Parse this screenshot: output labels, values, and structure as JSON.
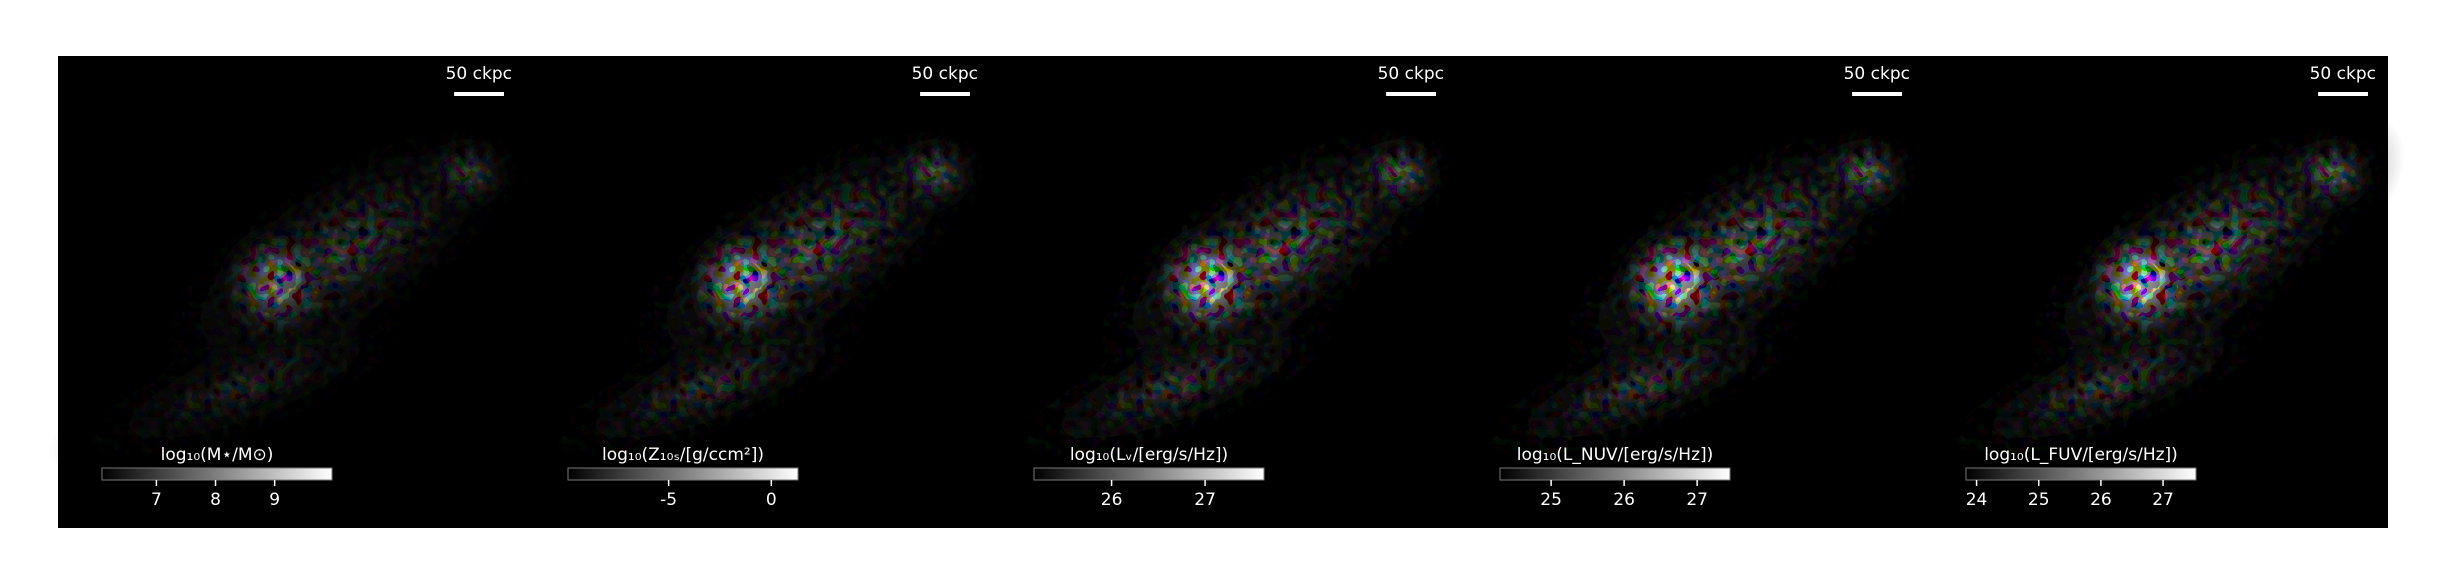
{
  "figure": {
    "type": "image",
    "panels": [
      {
        "scale_bar": "50 ckpc",
        "colorbar": {
          "label": "log₁₀(M⋆/M⊙)",
          "lim": [
            6.08,
            9.97
          ],
          "ticks": [
            7,
            8,
            9
          ]
        }
      },
      {
        "scale_bar": "50 ckpc",
        "colorbar": {
          "label": "log₁₀(Z₁₀ₛ/[g/ccm²])",
          "lim": [
            -9.9,
            1.3
          ],
          "ticks": [
            -5,
            0
          ]
        }
      },
      {
        "scale_bar": "50 ckpc",
        "colorbar": {
          "label": "log₁₀(Lᵥ/[erg/s/Hz])",
          "lim": [
            25.17,
            27.63
          ],
          "ticks": [
            26,
            27
          ]
        }
      },
      {
        "scale_bar": "50 ckpc",
        "colorbar": {
          "label": "log₁₀(L_NUV/[erg/s/Hz])",
          "lim": [
            24.3,
            27.45
          ],
          "ticks": [
            25,
            26,
            27
          ]
        }
      },
      {
        "scale_bar": "50 ckpc",
        "colorbar": {
          "label": "log₁₀(L_FUV/[erg/s/Hz])",
          "lim": [
            23.83,
            27.53
          ],
          "ticks": [
            24,
            25,
            26,
            27
          ]
        }
      }
    ]
  }
}
